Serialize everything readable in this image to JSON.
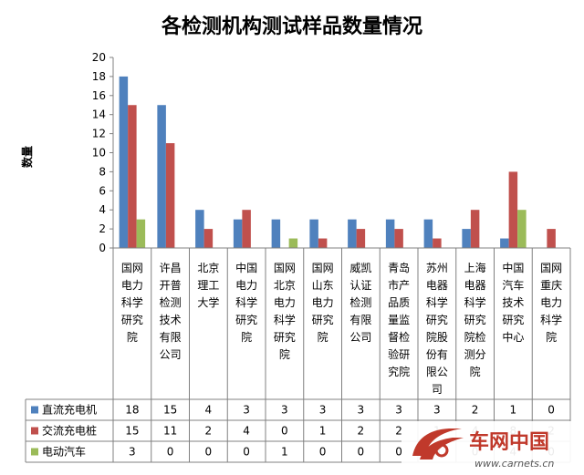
{
  "chart_data": {
    "type": "bar",
    "title": "各检测机构测试样品数量情况",
    "ylabel": "数量",
    "xlabel": "",
    "ylim": [
      0,
      20
    ],
    "yticks": [
      0,
      2,
      4,
      6,
      8,
      10,
      12,
      14,
      16,
      18,
      20
    ],
    "grid": false,
    "legend": "data-table",
    "categories": [
      "国网电力科学研究院",
      "许昌开普检测技术有限公司",
      "北京理工大学",
      "中国电力科学研究院",
      "国网北京电力科学研究院",
      "国网山东电力研究院",
      "威凯认证检测有限公司",
      "青岛市产品质量监督检验研究院",
      "苏州电器科学研究院股份有限公司",
      "上海电器科学研究院检测分院",
      "中国汽车技术研究中心",
      "国网重庆电力科学院"
    ],
    "series": [
      {
        "name": "直流充电机",
        "color": "#4F81BD",
        "values": [
          18,
          15,
          4,
          3,
          3,
          3,
          3,
          3,
          3,
          2,
          1,
          0
        ]
      },
      {
        "name": "交流充电桩",
        "color": "#C0504D",
        "values": [
          15,
          11,
          2,
          4,
          0,
          1,
          2,
          2,
          1,
          4,
          8,
          2
        ]
      },
      {
        "name": "电动汽车",
        "color": "#9BBB59",
        "values": [
          3,
          0,
          0,
          0,
          1,
          0,
          0,
          0,
          0,
          0,
          4,
          0
        ]
      }
    ]
  },
  "watermark": {
    "text": "车网中国",
    "url": "www.carnets.cn",
    "icon": "carnets-logo-icon"
  }
}
